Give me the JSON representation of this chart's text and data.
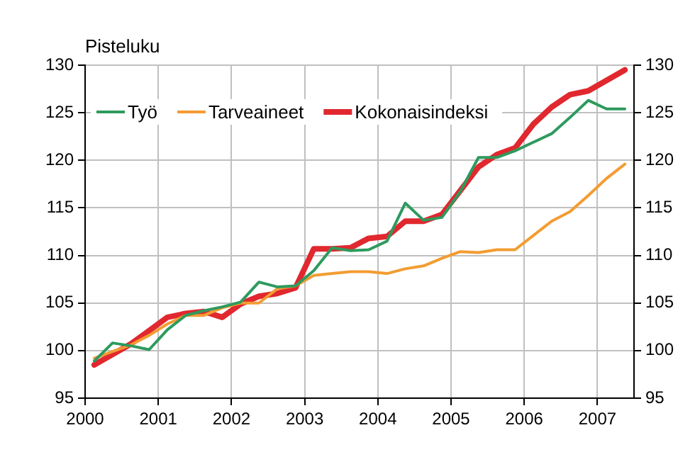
{
  "chart_data": {
    "type": "line",
    "ylabel": "Pisteluku",
    "x": [
      2000.125,
      2000.375,
      2000.625,
      2000.875,
      2001.125,
      2001.375,
      2001.625,
      2001.875,
      2002.125,
      2002.375,
      2002.625,
      2002.875,
      2003.125,
      2003.375,
      2003.625,
      2003.875,
      2004.125,
      2004.375,
      2004.625,
      2004.875,
      2005.125,
      2005.375,
      2005.625,
      2005.875,
      2006.125,
      2006.375,
      2006.625,
      2006.875,
      2007.125,
      2007.375
    ],
    "series": [
      {
        "name": "Työ",
        "color": "#2e9a5e",
        "values": [
          98.9,
          100.8,
          100.5,
          100.1,
          102.2,
          103.7,
          104.2,
          104.6,
          105.1,
          107.2,
          106.7,
          106.8,
          108.4,
          110.8,
          110.5,
          110.6,
          111.5,
          115.5,
          113.7,
          114.0,
          116.7,
          120.3,
          120.3,
          121.0,
          121.9,
          122.8,
          124.5,
          126.3,
          125.4,
          125.4
        ]
      },
      {
        "name": "Tarveaineet",
        "color": "#f39c32",
        "values": [
          99.2,
          99.9,
          100.6,
          101.6,
          102.8,
          103.7,
          103.7,
          104.5,
          105.0,
          105.0,
          106.5,
          106.8,
          107.9,
          108.1,
          108.3,
          108.3,
          108.1,
          108.6,
          108.9,
          109.7,
          110.4,
          110.3,
          110.6,
          110.6,
          112.1,
          113.6,
          114.6,
          116.3,
          118.1,
          119.6
        ]
      },
      {
        "name": "Kokonaisindeksi",
        "color": "#e0282e",
        "values": [
          98.5,
          99.6,
          100.7,
          102.1,
          103.5,
          103.9,
          104.1,
          103.5,
          104.9,
          105.7,
          106.0,
          106.6,
          110.7,
          110.7,
          110.8,
          111.8,
          112.0,
          113.6,
          113.6,
          114.3,
          116.8,
          119.3,
          120.6,
          121.3,
          123.8,
          125.6,
          126.9,
          127.3,
          128.4,
          129.5
        ]
      }
    ],
    "xlim": [
      2000,
      2007.5
    ],
    "xticks": [
      2000,
      2001,
      2002,
      2003,
      2004,
      2005,
      2006,
      2007
    ],
    "ylim": [
      95,
      130
    ],
    "yticks": [
      95,
      100,
      105,
      110,
      115,
      120,
      125,
      130
    ],
    "y2lim": [
      95,
      130
    ],
    "y2ticks": [
      95,
      100,
      105,
      110,
      115,
      120,
      125,
      130
    ],
    "grid": true,
    "legend": "top left",
    "marker": "none",
    "line_style": "solid"
  }
}
